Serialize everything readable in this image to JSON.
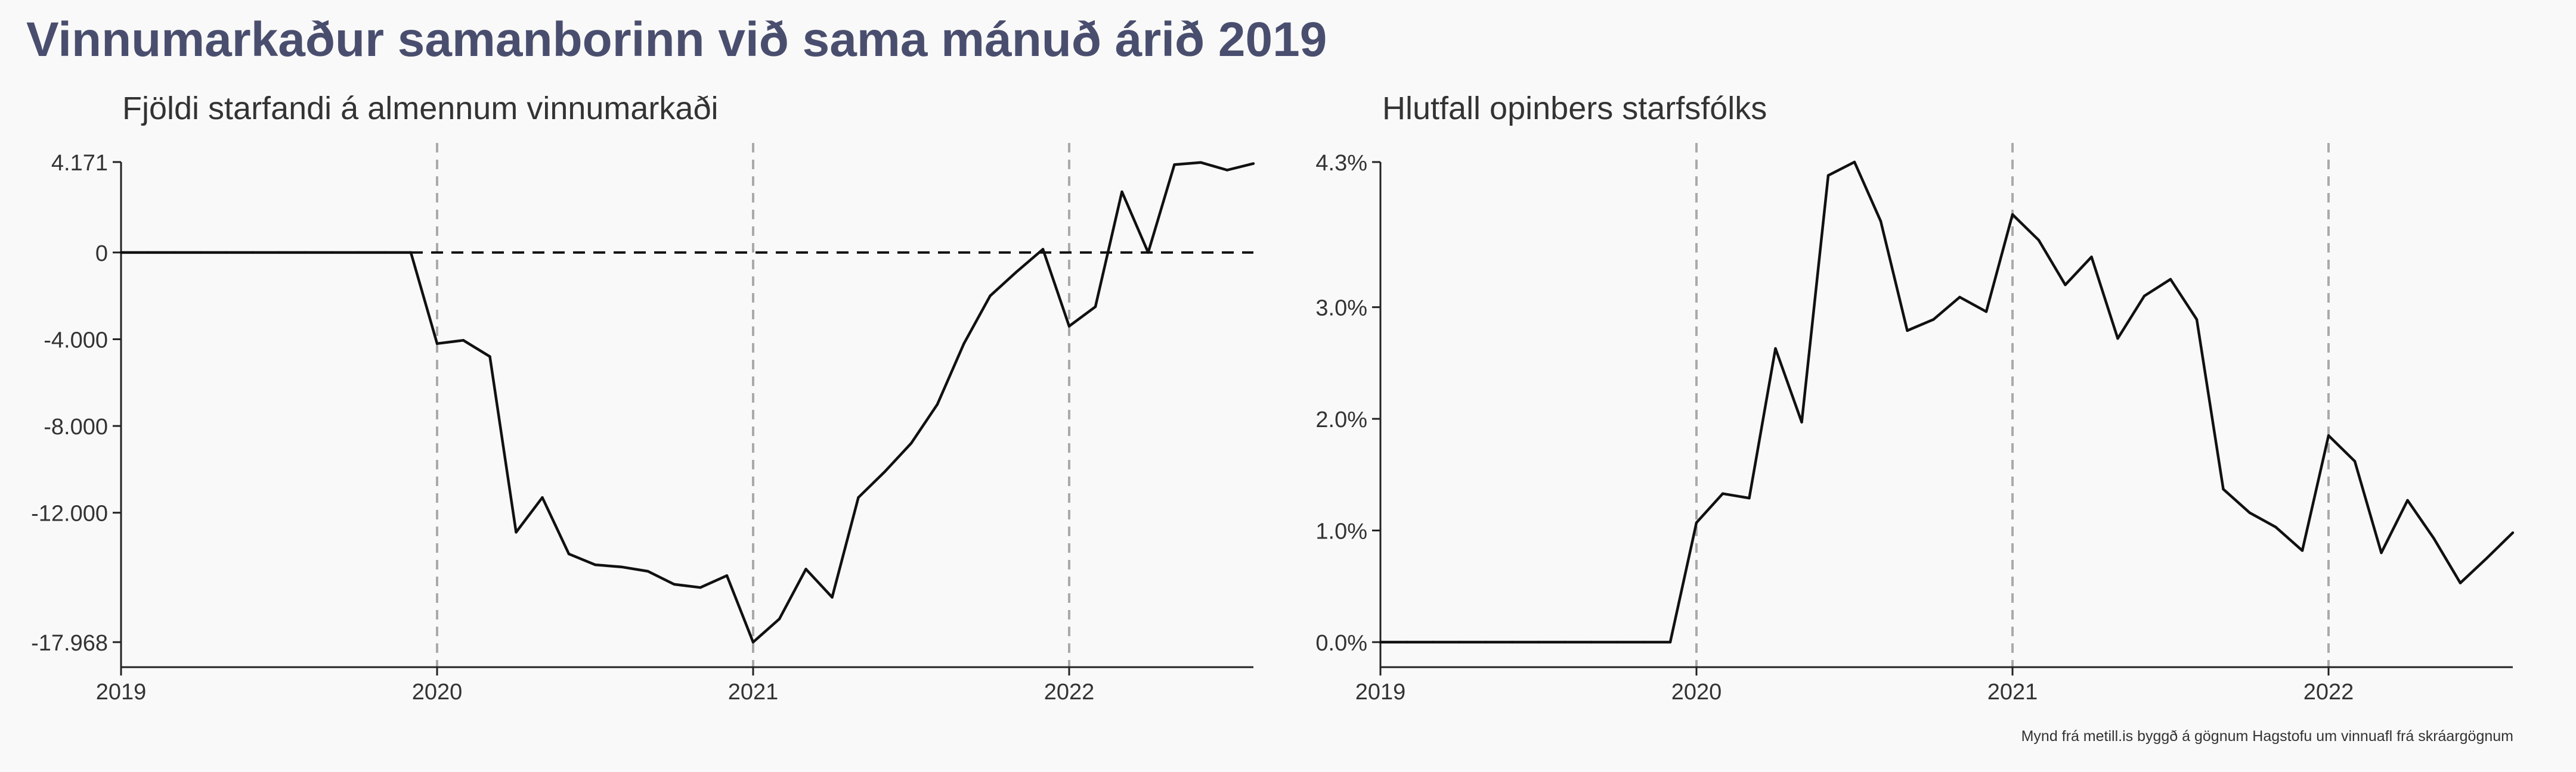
{
  "page": {
    "title": "Vinnumarkaður samanborinn við sama mánuð árið 2019",
    "caption": "Mynd frá metill.is byggð á gögnum Hagstofu um vinnuafl frá skráargögnum"
  },
  "colors": {
    "title": "#4a4e6e",
    "line": "#111111",
    "vline": "#aaaaaa",
    "axis": "#222222",
    "background": "#f9f9f9"
  },
  "chart_data": [
    {
      "type": "line",
      "title": "Fjöldi starfandi á almennum vinnumarkaði",
      "xlabel": "",
      "ylabel": "",
      "x_ticks": [
        "2019",
        "2020",
        "2021",
        "2022"
      ],
      "x_range": [
        2019.0,
        2022.583
      ],
      "y_ticks": [
        4171,
        0,
        -4000,
        -8000,
        -12000,
        -17968
      ],
      "y_tick_labels": [
        "4.171",
        "0",
        "-4.000",
        "-8.000",
        "-12.000",
        "-17.968"
      ],
      "ylim": [
        -17968,
        4171
      ],
      "grid": false,
      "vlines": [
        2020,
        2021,
        2022
      ],
      "hline": 0,
      "series": [
        {
          "x": [
            2019.0,
            2019.083,
            2019.167,
            2019.25,
            2019.333,
            2019.417,
            2019.5,
            2019.583,
            2019.667,
            2019.75,
            2019.833,
            2019.917,
            2020.0,
            2020.083,
            2020.167,
            2020.25,
            2020.333,
            2020.417,
            2020.5,
            2020.583,
            2020.667,
            2020.75,
            2020.833,
            2020.917,
            2021.0,
            2021.083,
            2021.167,
            2021.25,
            2021.333,
            2021.417,
            2021.5,
            2021.583,
            2021.667,
            2021.75,
            2021.833,
            2021.917,
            2022.0,
            2022.083,
            2022.167,
            2022.25,
            2022.333,
            2022.417,
            2022.5,
            2022.583
          ],
          "values": [
            0,
            0,
            0,
            0,
            0,
            0,
            0,
            0,
            0,
            0,
            0,
            0,
            -4200,
            -4050,
            -4800,
            -12900,
            -11300,
            -13900,
            -14400,
            -14500,
            -14700,
            -15300,
            -15450,
            -14900,
            -17968,
            -16900,
            -14600,
            -15900,
            -11300,
            -10100,
            -8800,
            -7000,
            -4200,
            -2000,
            -900,
            150,
            -3400,
            -2500,
            2800,
            0,
            4050,
            4150,
            3800,
            4100
          ]
        }
      ]
    },
    {
      "type": "line",
      "title": "Hlutfall opinbers starfsfólks",
      "xlabel": "",
      "ylabel": "",
      "x_ticks": [
        "2019",
        "2020",
        "2021",
        "2022"
      ],
      "x_range": [
        2019.0,
        2022.583
      ],
      "y_ticks": [
        0.0,
        1.0,
        2.0,
        3.0,
        4.3
      ],
      "y_tick_labels": [
        "0.0%",
        "1.0%",
        "2.0%",
        "3.0%",
        "4.3%"
      ],
      "ylim": [
        0,
        4.3
      ],
      "grid": false,
      "vlines": [
        2020,
        2021,
        2022
      ],
      "series": [
        {
          "x": [
            2019.0,
            2019.083,
            2019.167,
            2019.25,
            2019.333,
            2019.417,
            2019.5,
            2019.583,
            2019.667,
            2019.75,
            2019.833,
            2019.917,
            2020.0,
            2020.083,
            2020.167,
            2020.25,
            2020.333,
            2020.417,
            2020.5,
            2020.583,
            2020.667,
            2020.75,
            2020.833,
            2020.917,
            2021.0,
            2021.083,
            2021.167,
            2021.25,
            2021.333,
            2021.417,
            2021.5,
            2021.583,
            2021.667,
            2021.75,
            2021.833,
            2021.917,
            2022.0,
            2022.083,
            2022.167,
            2022.25,
            2022.333,
            2022.417,
            2022.5,
            2022.583
          ],
          "values": [
            0,
            0,
            0,
            0,
            0,
            0,
            0,
            0,
            0,
            0,
            0,
            0,
            1.07,
            1.33,
            1.29,
            2.63,
            1.97,
            4.18,
            4.3,
            3.77,
            2.79,
            2.89,
            3.09,
            2.96,
            3.83,
            3.6,
            3.2,
            3.45,
            2.72,
            3.1,
            3.25,
            2.89,
            1.37,
            1.16,
            1.03,
            0.82,
            1.85,
            1.62,
            0.8,
            1.27,
            0.93,
            0.53,
            0.75,
            0.98
          ]
        }
      ]
    }
  ]
}
